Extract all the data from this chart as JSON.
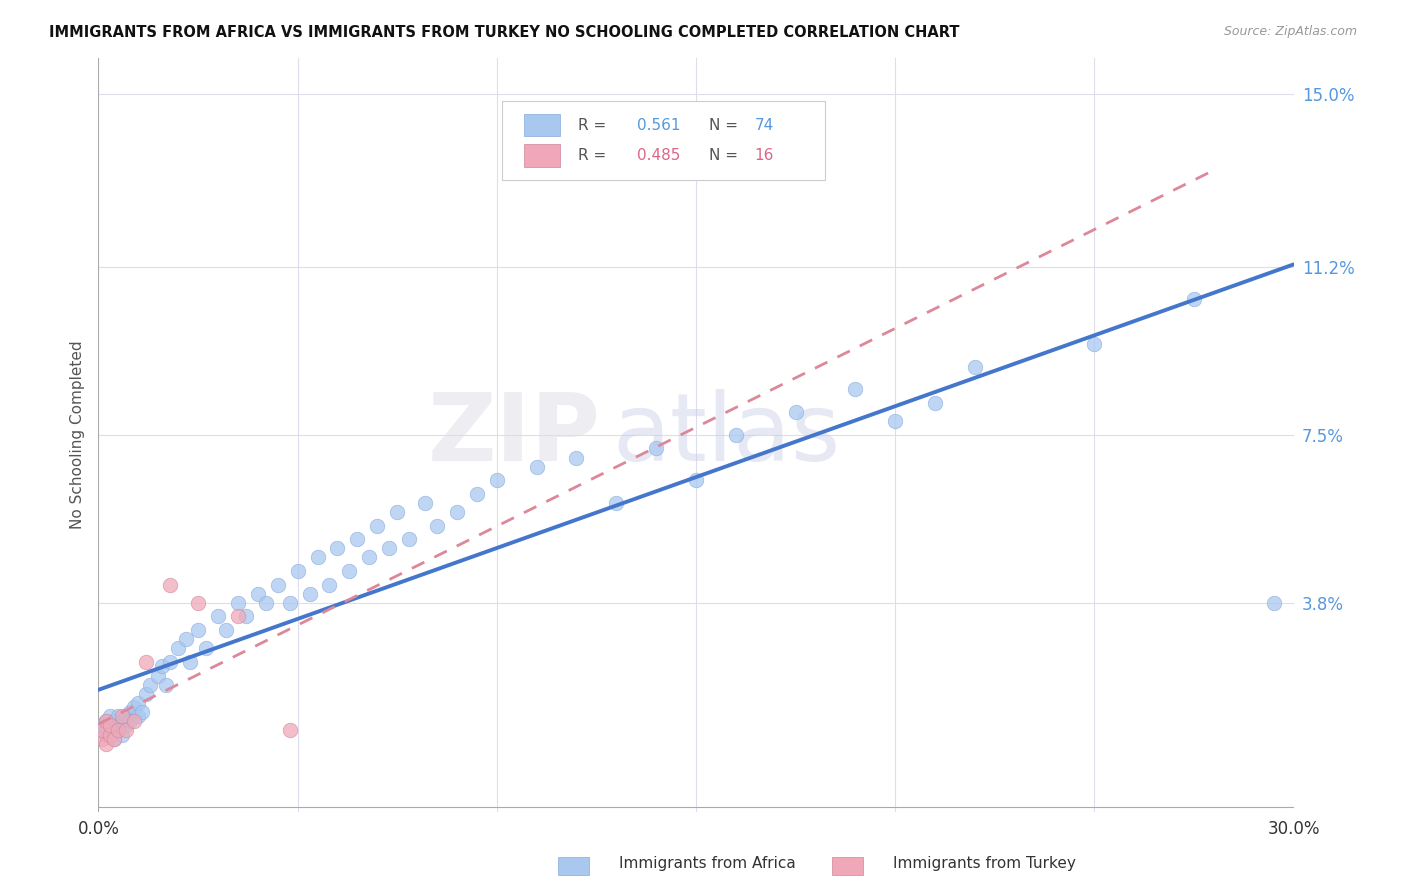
{
  "title": "IMMIGRANTS FROM AFRICA VS IMMIGRANTS FROM TURKEY NO SCHOOLING COMPLETED CORRELATION CHART",
  "source": "Source: ZipAtlas.com",
  "ylabel": "No Schooling Completed",
  "y_tick_labels_right": [
    "15.0%",
    "11.2%",
    "7.5%",
    "3.8%"
  ],
  "y_ticks_right": [
    0.15,
    0.112,
    0.075,
    0.038
  ],
  "xlim": [
    0.0,
    0.3
  ],
  "ylim": [
    -0.008,
    0.158
  ],
  "africa_R": 0.561,
  "africa_N": 74,
  "turkey_R": 0.485,
  "turkey_N": 16,
  "africa_color": "#a8c8f0",
  "turkey_color": "#f0a8b8",
  "africa_line_color": "#4477cc",
  "turkey_line_color": "#dd8899",
  "legend_africa_label": "Immigrants from Africa",
  "legend_turkey_label": "Immigrants from Turkey",
  "watermark_zip": "ZIP",
  "watermark_atlas": "atlas",
  "africa_x": [
    0.001,
    0.001,
    0.002,
    0.002,
    0.002,
    0.003,
    0.003,
    0.003,
    0.004,
    0.004,
    0.004,
    0.005,
    0.005,
    0.005,
    0.006,
    0.006,
    0.007,
    0.007,
    0.008,
    0.008,
    0.009,
    0.01,
    0.01,
    0.011,
    0.012,
    0.013,
    0.015,
    0.016,
    0.017,
    0.018,
    0.02,
    0.022,
    0.023,
    0.025,
    0.027,
    0.03,
    0.032,
    0.035,
    0.037,
    0.04,
    0.042,
    0.045,
    0.048,
    0.05,
    0.053,
    0.055,
    0.058,
    0.06,
    0.063,
    0.065,
    0.068,
    0.07,
    0.073,
    0.075,
    0.078,
    0.082,
    0.085,
    0.09,
    0.095,
    0.1,
    0.11,
    0.12,
    0.13,
    0.14,
    0.15,
    0.16,
    0.175,
    0.19,
    0.2,
    0.21,
    0.22,
    0.25,
    0.275,
    0.295
  ],
  "africa_y": [
    0.01,
    0.011,
    0.009,
    0.012,
    0.01,
    0.011,
    0.009,
    0.013,
    0.01,
    0.012,
    0.008,
    0.011,
    0.013,
    0.01,
    0.012,
    0.009,
    0.013,
    0.011,
    0.014,
    0.012,
    0.015,
    0.013,
    0.016,
    0.014,
    0.018,
    0.02,
    0.022,
    0.024,
    0.02,
    0.025,
    0.028,
    0.03,
    0.025,
    0.032,
    0.028,
    0.035,
    0.032,
    0.038,
    0.035,
    0.04,
    0.038,
    0.042,
    0.038,
    0.045,
    0.04,
    0.048,
    0.042,
    0.05,
    0.045,
    0.052,
    0.048,
    0.055,
    0.05,
    0.058,
    0.052,
    0.06,
    0.055,
    0.058,
    0.062,
    0.065,
    0.068,
    0.07,
    0.06,
    0.072,
    0.065,
    0.075,
    0.08,
    0.085,
    0.078,
    0.082,
    0.09,
    0.095,
    0.105,
    0.038
  ],
  "turkey_x": [
    0.001,
    0.001,
    0.002,
    0.002,
    0.003,
    0.003,
    0.004,
    0.005,
    0.006,
    0.007,
    0.009,
    0.012,
    0.018,
    0.025,
    0.035,
    0.048
  ],
  "turkey_y": [
    0.008,
    0.01,
    0.007,
    0.012,
    0.009,
    0.011,
    0.008,
    0.01,
    0.013,
    0.01,
    0.012,
    0.025,
    0.042,
    0.038,
    0.035,
    0.01
  ]
}
